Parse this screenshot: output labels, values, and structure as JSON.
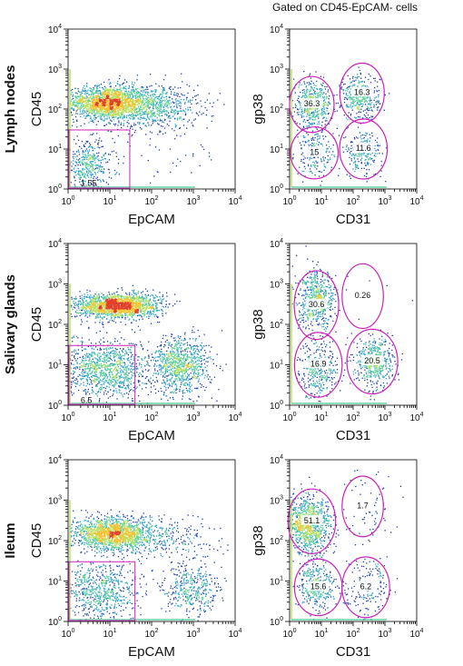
{
  "figure": {
    "right_header": "Gated on CD45-EpCAM- cells"
  },
  "colors": {
    "gate": "#cc22bb",
    "sparse_dot": "#1f3fa8",
    "density_scale": [
      "#1f3fa8",
      "#2fa4c8",
      "#5ccf9a",
      "#b8e060",
      "#f2c230",
      "#e0402a"
    ]
  },
  "chart_data": [
    {
      "type": "scatter",
      "row_label": "Lymph nodes",
      "xlabel": "EpCAM",
      "ylabel": "CD45",
      "xscale": "log",
      "yscale": "log",
      "xlim": [
        1,
        10000
      ],
      "ylim": [
        1,
        10000
      ],
      "x_ticks": [
        1,
        10,
        100,
        1000,
        10000
      ],
      "y_ticks": [
        1,
        10,
        100,
        1000,
        10000
      ],
      "populations": [
        {
          "x": 8,
          "y": 150,
          "sx": 0.45,
          "sy": 0.2,
          "n": 1600
        },
        {
          "x": 80,
          "y": 120,
          "sx": 0.6,
          "sy": 0.28,
          "n": 900
        },
        {
          "x": 3,
          "y": 4,
          "sx": 0.3,
          "sy": 0.3,
          "n": 400
        },
        {
          "x": 200,
          "y": 8,
          "sx": 0.7,
          "sy": 0.4,
          "n": 40
        }
      ],
      "gates": [
        {
          "shape": "rect",
          "x": [
            1,
            30
          ],
          "y": [
            1,
            30
          ],
          "label": "1.55",
          "label_at": [
            2,
            1.2
          ]
        }
      ]
    },
    {
      "type": "scatter",
      "row_label": "Lymph nodes",
      "xlabel": "CD31",
      "ylabel": "gp38",
      "xscale": "log",
      "yscale": "log",
      "xlim": [
        1,
        10000
      ],
      "ylim": [
        1,
        10000
      ],
      "x_ticks": [
        1,
        10,
        100,
        1000,
        10000
      ],
      "y_ticks": [
        1,
        10,
        100,
        1000,
        10000
      ],
      "populations": [
        {
          "x": 5,
          "y": 130,
          "sx": 0.3,
          "sy": 0.28,
          "n": 500
        },
        {
          "x": 160,
          "y": 200,
          "sx": 0.3,
          "sy": 0.28,
          "n": 400
        },
        {
          "x": 6,
          "y": 8,
          "sx": 0.3,
          "sy": 0.28,
          "n": 220
        },
        {
          "x": 200,
          "y": 8,
          "sx": 0.3,
          "sy": 0.28,
          "n": 220
        }
      ],
      "gates": [
        {
          "shape": "ellipse",
          "cx": 5,
          "cy": 130,
          "rx": 0.7,
          "ry": 0.7,
          "label": "36.3"
        },
        {
          "shape": "ellipse",
          "cx": 190,
          "cy": 250,
          "rx": 0.7,
          "ry": 0.75,
          "label": "16.3"
        },
        {
          "shape": "ellipse",
          "cx": 6,
          "cy": 8,
          "rx": 0.75,
          "ry": 0.65,
          "label": "15"
        },
        {
          "shape": "ellipse",
          "cx": 210,
          "cy": 10,
          "rx": 0.75,
          "ry": 0.75,
          "label": "11.6"
        }
      ]
    },
    {
      "type": "scatter",
      "row_label": "Salivary glands",
      "xlabel": "EpCAM",
      "ylabel": "CD45",
      "xscale": "log",
      "yscale": "log",
      "xlim": [
        1,
        10000
      ],
      "ylim": [
        1,
        10000
      ],
      "x_ticks": [
        1,
        10,
        100,
        1000,
        10000
      ],
      "y_ticks": [
        1,
        10,
        100,
        1000,
        10000
      ],
      "populations": [
        {
          "x": 15,
          "y": 300,
          "sx": 0.5,
          "sy": 0.15,
          "n": 1800
        },
        {
          "x": 8,
          "y": 8,
          "sx": 0.5,
          "sy": 0.35,
          "n": 1100
        },
        {
          "x": 500,
          "y": 10,
          "sx": 0.35,
          "sy": 0.35,
          "n": 900
        }
      ],
      "gates": [
        {
          "shape": "rect",
          "x": [
            1,
            40
          ],
          "y": [
            1,
            30
          ],
          "label": "6.5",
          "label_at": [
            2,
            1.15
          ]
        }
      ]
    },
    {
      "type": "scatter",
      "row_label": "Salivary glands",
      "xlabel": "CD31",
      "ylabel": "gp38",
      "xscale": "log",
      "yscale": "log",
      "xlim": [
        1,
        10000
      ],
      "ylim": [
        1,
        10000
      ],
      "x_ticks": [
        1,
        10,
        100,
        1000,
        10000
      ],
      "y_ticks": [
        1,
        10,
        100,
        1000,
        10000
      ],
      "populations": [
        {
          "x": 7,
          "y": 400,
          "sx": 0.3,
          "sy": 0.35,
          "n": 600
        },
        {
          "x": 8,
          "y": 8,
          "sx": 0.3,
          "sy": 0.35,
          "n": 350
        },
        {
          "x": 450,
          "y": 12,
          "sx": 0.3,
          "sy": 0.3,
          "n": 500
        },
        {
          "x": 200,
          "y": 400,
          "sx": 0.6,
          "sy": 0.5,
          "n": 8
        }
      ],
      "gates": [
        {
          "shape": "ellipse",
          "cx": 7,
          "cy": 300,
          "rx": 0.7,
          "ry": 0.85,
          "label": "30.6"
        },
        {
          "shape": "ellipse",
          "cx": 200,
          "cy": 500,
          "rx": 0.65,
          "ry": 0.8,
          "label": "0.26"
        },
        {
          "shape": "ellipse",
          "cx": 8,
          "cy": 10,
          "rx": 0.75,
          "ry": 0.8,
          "label": "16.9"
        },
        {
          "shape": "ellipse",
          "cx": 400,
          "cy": 12,
          "rx": 0.8,
          "ry": 0.8,
          "label": "20.5"
        }
      ]
    },
    {
      "type": "scatter",
      "row_label": "Ileum",
      "xlabel": "EpCAM",
      "ylabel": "CD45",
      "xscale": "log",
      "yscale": "log",
      "xlim": [
        1,
        10000
      ],
      "ylim": [
        1,
        10000
      ],
      "x_ticks": [
        1,
        10,
        100,
        1000,
        10000
      ],
      "y_ticks": [
        1,
        10,
        100,
        1000,
        10000
      ],
      "populations": [
        {
          "x": 12,
          "y": 150,
          "sx": 0.5,
          "sy": 0.2,
          "n": 1700
        },
        {
          "x": 6,
          "y": 6,
          "sx": 0.45,
          "sy": 0.35,
          "n": 700
        },
        {
          "x": 800,
          "y": 6,
          "sx": 0.35,
          "sy": 0.35,
          "n": 400
        },
        {
          "x": 300,
          "y": 100,
          "sx": 0.6,
          "sy": 0.3,
          "n": 200
        }
      ],
      "gates": [
        {
          "shape": "rect",
          "x": [
            1,
            40
          ],
          "y": [
            1,
            30
          ],
          "label": "",
          "label_at": [
            2,
            1.2
          ]
        }
      ]
    },
    {
      "type": "scatter",
      "row_label": "Ileum",
      "xlabel": "CD31",
      "ylabel": "gp38",
      "xscale": "log",
      "yscale": "log",
      "xlim": [
        1,
        10000
      ],
      "ylim": [
        1,
        10000
      ],
      "x_ticks": [
        1,
        10,
        100,
        1000,
        10000
      ],
      "y_ticks": [
        1,
        10,
        100,
        1000,
        10000
      ],
      "populations": [
        {
          "x": 4,
          "y": 250,
          "sx": 0.35,
          "sy": 0.35,
          "n": 1000
        },
        {
          "x": 7,
          "y": 8,
          "sx": 0.3,
          "sy": 0.3,
          "n": 350
        },
        {
          "x": 250,
          "y": 7,
          "sx": 0.35,
          "sy": 0.35,
          "n": 180
        },
        {
          "x": 300,
          "y": 700,
          "sx": 0.5,
          "sy": 0.5,
          "n": 60
        }
      ],
      "gates": [
        {
          "shape": "ellipse",
          "cx": 5,
          "cy": 300,
          "rx": 0.75,
          "ry": 0.8,
          "label": "51.1"
        },
        {
          "shape": "ellipse",
          "cx": 200,
          "cy": 700,
          "rx": 0.65,
          "ry": 0.75,
          "label": "1.7"
        },
        {
          "shape": "ellipse",
          "cx": 8,
          "cy": 7,
          "rx": 0.75,
          "ry": 0.7,
          "label": "15.6"
        },
        {
          "shape": "ellipse",
          "cx": 250,
          "cy": 7,
          "rx": 0.75,
          "ry": 0.75,
          "label": "6.2"
        }
      ]
    }
  ]
}
